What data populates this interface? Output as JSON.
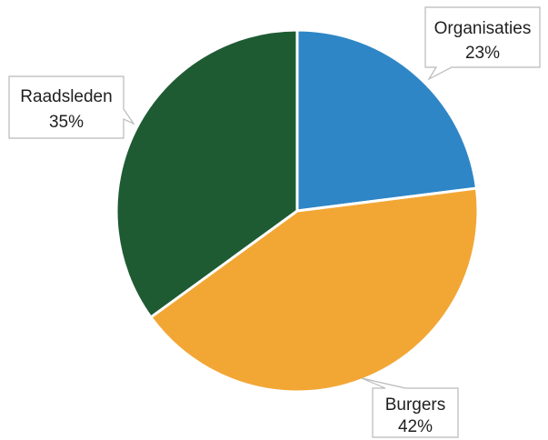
{
  "chart_data": {
    "type": "pie",
    "title": "",
    "slices": [
      {
        "label": "Organisaties",
        "value": 23,
        "value_label": "23%",
        "color": "#2f86c6"
      },
      {
        "label": "Burgers",
        "value": 42,
        "value_label": "42%",
        "color": "#f2a735"
      },
      {
        "label": "Raadsleden",
        "value": 35,
        "value_label": "35%",
        "color": "#1e5b33"
      }
    ],
    "start_angle": "12 o'clock",
    "direction": "clockwise",
    "labels": "callout boxes outside slices"
  }
}
